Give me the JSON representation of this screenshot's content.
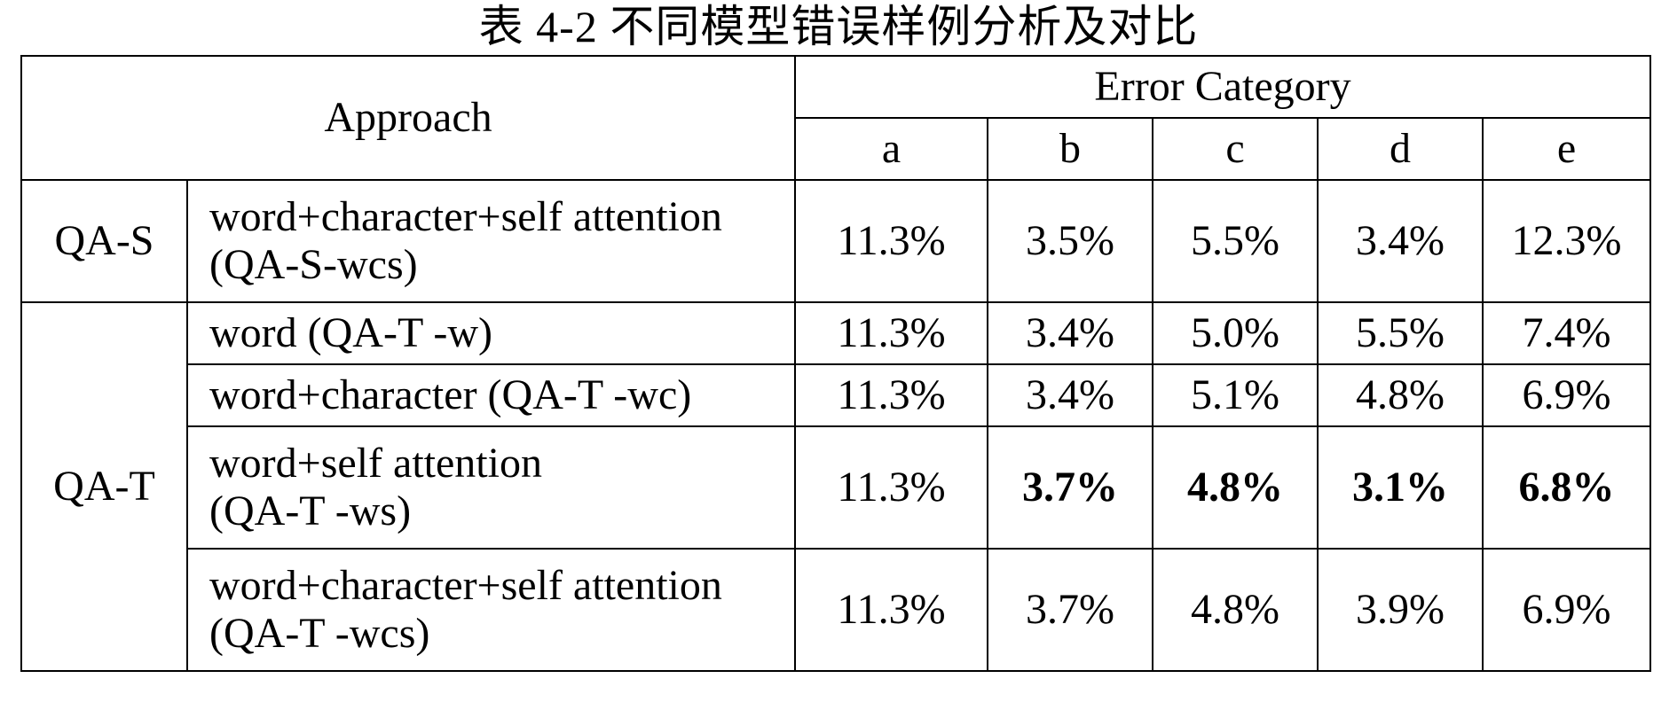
{
  "caption": "表 4-2  不同模型错误样例分析及对比",
  "header": {
    "approach": "Approach",
    "error_category": "Error Category",
    "categories": [
      "a",
      "b",
      "c",
      "d",
      "e"
    ]
  },
  "groups": {
    "qa_s": "QA-S",
    "qa_t": "QA-T"
  },
  "rows": [
    {
      "desc_line1": "word+character+self attention",
      "desc_line2": "(QA-S-wcs)",
      "values": [
        "11.3%",
        "3.5%",
        "5.5%",
        "3.4%",
        "12.3%"
      ]
    },
    {
      "desc_line1": "word (QA-T -w)",
      "values": [
        "11.3%",
        "3.4%",
        "5.0%",
        "5.5%",
        "7.4%"
      ]
    },
    {
      "desc_line1": "word+character (QA-T -wc)",
      "values": [
        "11.3%",
        "3.4%",
        "5.1%",
        "4.8%",
        "6.9%"
      ]
    },
    {
      "desc_line1": "word+self attention",
      "desc_line2": "(QA-T -ws)",
      "values": [
        "11.3%",
        "3.7%",
        "4.8%",
        "3.1%",
        "6.8%"
      ],
      "bold_columns": [
        "b",
        "c",
        "d",
        "e"
      ]
    },
    {
      "desc_line1": "word+character+self attention",
      "desc_line2": "(QA-T -wcs)",
      "values": [
        "11.3%",
        "3.7%",
        "4.8%",
        "3.9%",
        "6.9%"
      ]
    }
  ]
}
